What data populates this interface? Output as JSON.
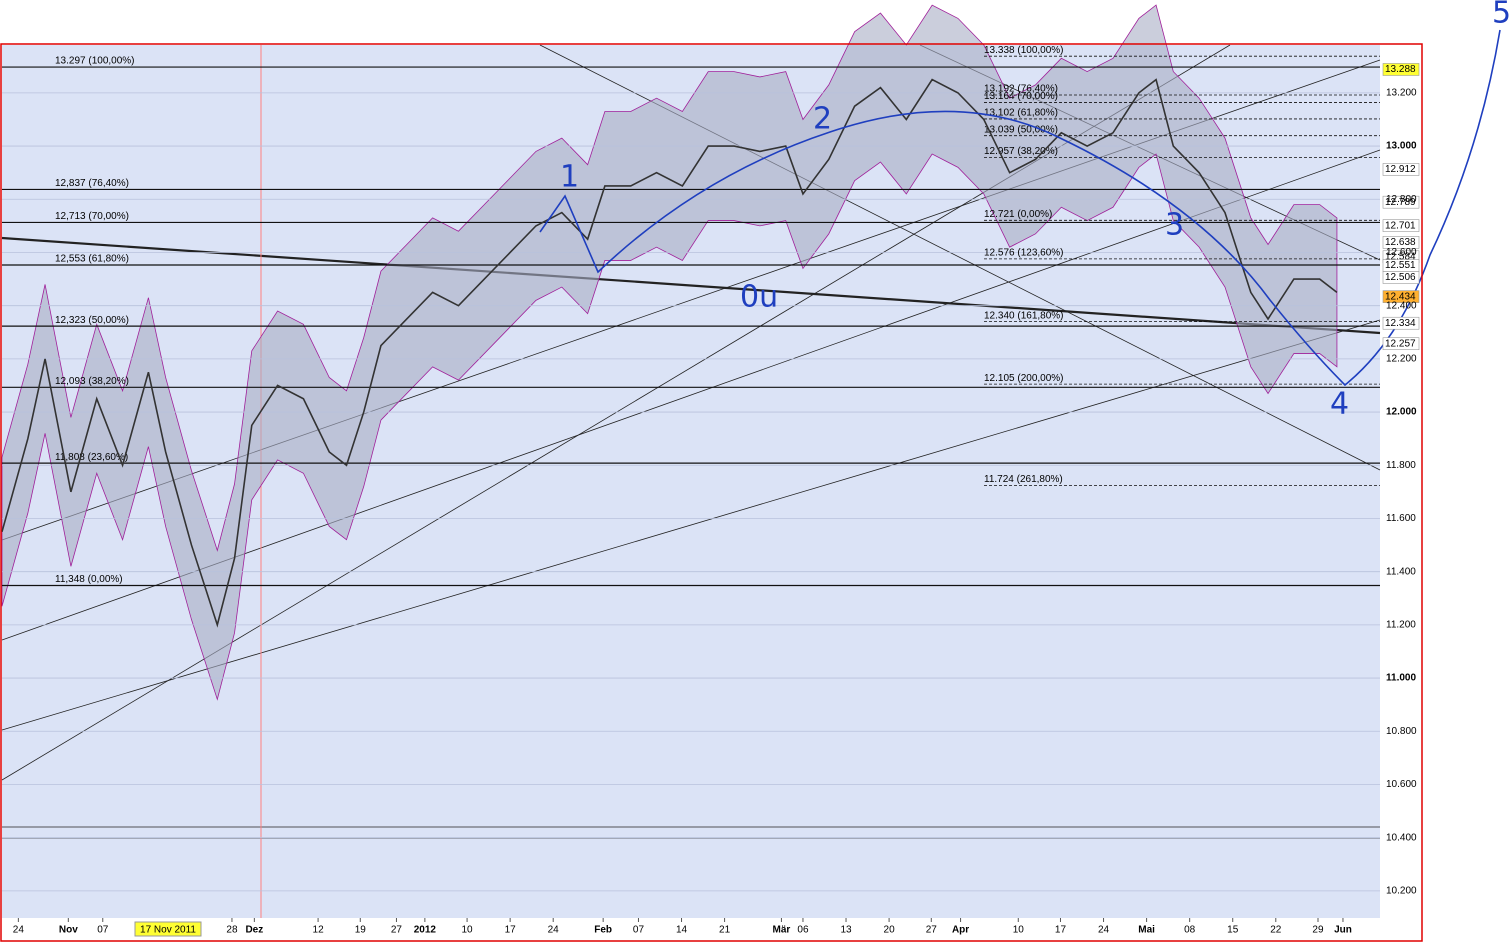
{
  "chart_data": {
    "type": "line",
    "color": "#333333",
    "x": [
      0,
      3,
      5,
      8,
      11,
      14,
      17,
      19,
      22,
      25,
      27,
      29,
      32,
      35,
      38,
      40,
      42,
      44,
      47,
      50,
      53,
      56,
      59,
      62,
      65,
      68,
      70,
      73,
      76,
      79,
      82,
      85,
      88,
      91,
      93,
      96,
      99,
      102,
      105,
      108,
      111,
      114,
      117,
      120,
      123,
      126,
      129,
      132,
      134,
      136,
      139,
      142,
      145,
      147,
      150,
      153,
      155
    ],
    "values": [
      11.55,
      11.9,
      12.2,
      11.7,
      12.05,
      11.8,
      12.15,
      11.85,
      11.5,
      11.2,
      11.45,
      11.95,
      12.1,
      12.05,
      11.85,
      11.8,
      12.0,
      12.25,
      12.35,
      12.45,
      12.4,
      12.5,
      12.6,
      12.7,
      12.75,
      12.65,
      12.85,
      12.85,
      12.9,
      12.85,
      13.0,
      13.0,
      12.98,
      13.0,
      12.82,
      12.95,
      13.15,
      13.22,
      13.1,
      13.25,
      13.2,
      13.1,
      12.9,
      12.95,
      13.05,
      13.0,
      13.05,
      13.2,
      13.25,
      13.0,
      12.9,
      12.75,
      12.45,
      12.35,
      12.5,
      12.5,
      12.45
    ],
    "xlim": [
      0,
      160
    ],
    "ylim": [
      10.098,
      13.38
    ],
    "grid": true,
    "xticks": [
      {
        "value": 1.9,
        "label": "24"
      },
      {
        "value": 7.7,
        "label": "Nov"
      },
      {
        "value": 11.7,
        "label": "07"
      },
      {
        "value": 26.7,
        "label": "28"
      },
      {
        "value": 29.3,
        "label": "Dez"
      },
      {
        "value": 36.7,
        "label": "12"
      },
      {
        "value": 41.6,
        "label": "19"
      },
      {
        "value": 45.8,
        "label": "27"
      },
      {
        "value": 49.1,
        "label": "2012"
      },
      {
        "value": 54,
        "label": "10"
      },
      {
        "value": 59,
        "label": "17"
      },
      {
        "value": 64,
        "label": "24"
      },
      {
        "value": 69.8,
        "label": "Feb"
      },
      {
        "value": 73.9,
        "label": "07"
      },
      {
        "value": 78.9,
        "label": "14"
      },
      {
        "value": 83.9,
        "label": "21"
      },
      {
        "value": 90.5,
        "label": "Mär"
      },
      {
        "value": 93,
        "label": "06"
      },
      {
        "value": 98,
        "label": "13"
      },
      {
        "value": 103,
        "label": "20"
      },
      {
        "value": 107.9,
        "label": "27"
      },
      {
        "value": 111.3,
        "label": "Apr"
      },
      {
        "value": 118,
        "label": "10"
      },
      {
        "value": 122.9,
        "label": "17"
      },
      {
        "value": 127.9,
        "label": "24"
      },
      {
        "value": 132.9,
        "label": "Mai"
      },
      {
        "value": 137.9,
        "label": "08"
      },
      {
        "value": 142.9,
        "label": "15"
      },
      {
        "value": 147.9,
        "label": "22"
      },
      {
        "value": 152.8,
        "label": "29"
      },
      {
        "value": 155.7,
        "label": "Jun"
      }
    ],
    "yticks": [
      {
        "value": 10.2,
        "label": "10.200"
      },
      {
        "value": 10.4,
        "label": "10.400"
      },
      {
        "value": 10.6,
        "label": "10.600"
      },
      {
        "value": 10.8,
        "label": "10.800"
      },
      {
        "value": 11.0,
        "label": "11.000"
      },
      {
        "value": 11.2,
        "label": "11.200"
      },
      {
        "value": 11.4,
        "label": "11.400"
      },
      {
        "value": 11.6,
        "label": "11.600"
      },
      {
        "value": 11.8,
        "label": "11.800"
      },
      {
        "value": 12.0,
        "label": "12.000"
      },
      {
        "value": 12.2,
        "label": "12.200"
      },
      {
        "value": 12.4,
        "label": "12.400"
      },
      {
        "value": 12.6,
        "label": "12.600"
      },
      {
        "value": 12.8,
        "label": "12.800"
      },
      {
        "value": 13.0,
        "label": "13.000"
      },
      {
        "value": 13.2,
        "label": "13.200"
      }
    ],
    "cursor_label": "17 Nov 2011",
    "fib_left": [
      {
        "value": 13.297,
        "label": "13.297 (100,00%)"
      },
      {
        "value": 12.837,
        "label": "12,837 (76,40%)"
      },
      {
        "value": 12.713,
        "label": "12,713 (70,00%)"
      },
      {
        "value": 12.553,
        "label": "12,553 (61,80%)"
      },
      {
        "value": 12.323,
        "label": "12,323 (50,00%)"
      },
      {
        "value": 12.093,
        "label": "12,093 (38,20%)"
      },
      {
        "value": 11.808,
        "label": "11,808 (23,60%)"
      },
      {
        "value": 11.348,
        "label": "11,348 (0,00%)"
      }
    ],
    "fib_right": [
      {
        "value": 13.338,
        "label": "13.338 (100,00%)"
      },
      {
        "value": 13.192,
        "label": "13.192 (76,40%)"
      },
      {
        "value": 13.164,
        "label": "13.164 (70,00%)"
      },
      {
        "value": 13.102,
        "label": "13.102 (61,80%)"
      },
      {
        "value": 13.039,
        "label": "13.039 (50,00%)"
      },
      {
        "value": 12.957,
        "label": "12.957 (38,20%)"
      },
      {
        "value": 12.721,
        "label": "12.721 (0,00%)"
      },
      {
        "value": 12.576,
        "label": "12.576 (123,60%)"
      },
      {
        "value": 12.34,
        "label": "12.340 (161,80%)"
      },
      {
        "value": 12.105,
        "label": "12.105 (200,00%)"
      },
      {
        "value": 11.724,
        "label": "11.724 (261,80%)"
      }
    ],
    "price_tags": [
      {
        "value": 13.288,
        "color": "#000000",
        "background": "#ffff33"
      },
      {
        "value": 12.912,
        "color": "#7a1fa0",
        "background": "#ffffff"
      },
      {
        "value": 12.789,
        "color": "#d00000",
        "background": "#ffffff"
      },
      {
        "value": 12.701,
        "color": "#d00000",
        "background": "#ffffff"
      },
      {
        "value": 12.638,
        "color": "#d00000",
        "background": "#ffffff"
      },
      {
        "value": 12.584,
        "color": "#d00000",
        "background": "#ffffff"
      },
      {
        "value": 12.551,
        "color": "#333333",
        "background": "#ffffff"
      },
      {
        "value": 12.506,
        "color": "#1f3fbf",
        "background": "#ffffff"
      },
      {
        "value": 12.434,
        "color": "#000000",
        "background": "#ffb030"
      },
      {
        "value": 12.334,
        "color": "#108010",
        "background": "#ffffff"
      },
      {
        "value": 12.257,
        "color": "#1f3fbf",
        "background": "#ffffff"
      }
    ],
    "annotations": [
      "1",
      "2",
      "3",
      "4",
      "5",
      "0u"
    ]
  }
}
